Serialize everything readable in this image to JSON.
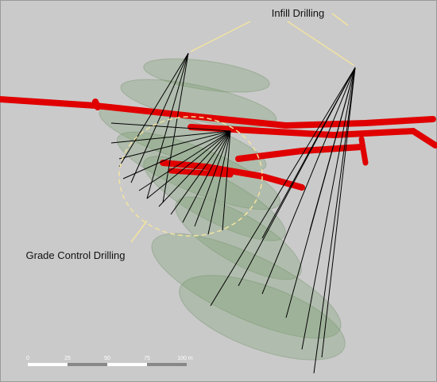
{
  "annotations": {
    "infill": "Infill Drilling",
    "grade_control": "Grade Control Drilling"
  },
  "scale_bar": {
    "labels": [
      "0",
      "25",
      "50",
      "75",
      "100 m"
    ]
  }
}
